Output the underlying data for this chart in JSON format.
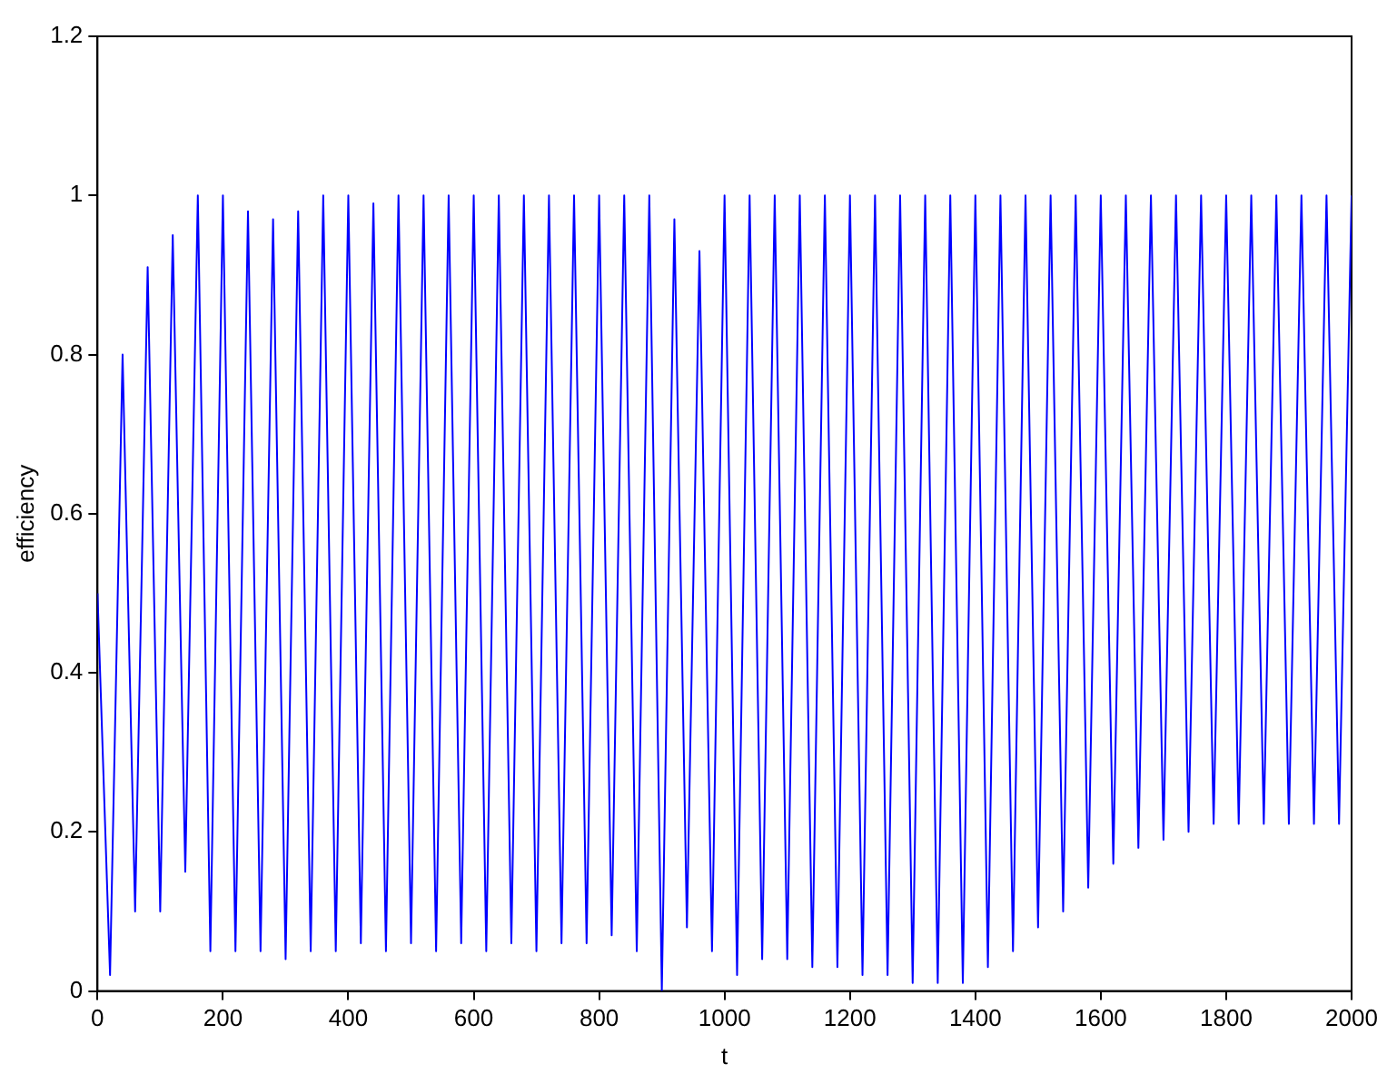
{
  "chart_data": {
    "type": "line",
    "xlabel": "t",
    "ylabel": "efficiency",
    "xlim": [
      0,
      2000
    ],
    "xticks": [
      0,
      200,
      400,
      600,
      800,
      1000,
      1200,
      1400,
      1600,
      1800,
      2000
    ],
    "ylim": [
      0,
      1.2
    ],
    "yticks": [
      0,
      0.2,
      0.4,
      0.6,
      0.8,
      1,
      1.2
    ],
    "grid": false,
    "legend": false,
    "marker": "none",
    "x": [
      0,
      20,
      40,
      60,
      80,
      100,
      120,
      140,
      160,
      180,
      200,
      220,
      240,
      260,
      280,
      300,
      320,
      340,
      360,
      380,
      400,
      420,
      440,
      460,
      480,
      500,
      520,
      540,
      560,
      580,
      600,
      620,
      640,
      660,
      680,
      700,
      720,
      740,
      760,
      780,
      800,
      820,
      840,
      860,
      880,
      900,
      920,
      940,
      960,
      980,
      1000,
      1020,
      1040,
      1060,
      1080,
      1100,
      1120,
      1140,
      1160,
      1180,
      1200,
      1220,
      1240,
      1260,
      1280,
      1300,
      1320,
      1340,
      1360,
      1380,
      1400,
      1420,
      1440,
      1460,
      1480,
      1500,
      1520,
      1540,
      1560,
      1580,
      1600,
      1620,
      1640,
      1660,
      1680,
      1700,
      1720,
      1740,
      1760,
      1780,
      1800,
      1820,
      1840,
      1860,
      1880,
      1900,
      1920,
      1940,
      1960,
      1980,
      2000
    ],
    "series": [
      {
        "color": "#0000ff",
        "values": [
          0.5,
          0.02,
          0.8,
          0.1,
          0.91,
          0.1,
          0.95,
          0.15,
          1.0,
          0.05,
          1.0,
          0.05,
          0.98,
          0.05,
          0.97,
          0.04,
          0.98,
          0.05,
          1.0,
          0.05,
          1.0,
          0.06,
          0.99,
          0.05,
          1.0,
          0.06,
          1.0,
          0.05,
          1.0,
          0.06,
          1.0,
          0.05,
          1.0,
          0.06,
          1.0,
          0.05,
          1.0,
          0.06,
          1.0,
          0.06,
          1.0,
          0.07,
          1.0,
          0.05,
          1.0,
          0.0,
          0.97,
          0.08,
          0.93,
          0.05,
          1.0,
          0.02,
          1.0,
          0.04,
          1.0,
          0.04,
          1.0,
          0.03,
          1.0,
          0.03,
          1.0,
          0.02,
          1.0,
          0.02,
          1.0,
          0.01,
          1.0,
          0.01,
          1.0,
          0.01,
          1.0,
          0.03,
          1.0,
          0.05,
          1.0,
          0.08,
          1.0,
          0.1,
          1.0,
          0.13,
          1.0,
          0.16,
          1.0,
          0.18,
          1.0,
          0.19,
          1.0,
          0.2,
          1.0,
          0.21,
          1.0,
          0.21,
          1.0,
          0.21,
          1.0,
          0.21,
          1.0,
          0.21,
          1.0,
          0.21,
          1.0
        ]
      }
    ]
  }
}
